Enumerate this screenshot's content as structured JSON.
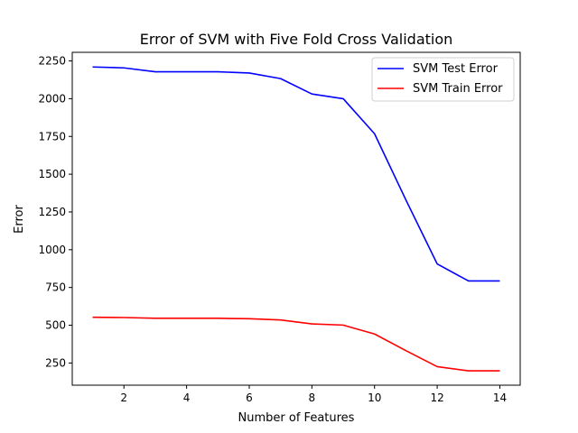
{
  "chart_data": {
    "type": "line",
    "title": "Error of SVM with Five Fold Cross Validation",
    "xlabel": "Number of Features",
    "ylabel": "Error",
    "xlim": [
      0.35,
      14.65
    ],
    "ylim": [
      103,
      2307
    ],
    "xticks": [
      2,
      4,
      6,
      8,
      10,
      12,
      14
    ],
    "yticks": [
      250,
      500,
      750,
      1000,
      1250,
      1500,
      1750,
      2000,
      2250
    ],
    "x": [
      1,
      2,
      3,
      4,
      5,
      6,
      7,
      8,
      9,
      10,
      11,
      12,
      13,
      14
    ],
    "series": [
      {
        "name": "SVM Test Error",
        "color": "#0000ff",
        "values": [
          2210,
          2204,
          2178,
          2178,
          2178,
          2170,
          2133,
          2031,
          2000,
          1768,
          1330,
          906,
          793,
          793
        ]
      },
      {
        "name": "SVM Train Error",
        "color": "#ff0000",
        "values": [
          553,
          551,
          546,
          546,
          546,
          543,
          535,
          509,
          501,
          442,
          332,
          226,
          198,
          198
        ]
      }
    ],
    "grid": false,
    "legend_position": "top-right"
  }
}
